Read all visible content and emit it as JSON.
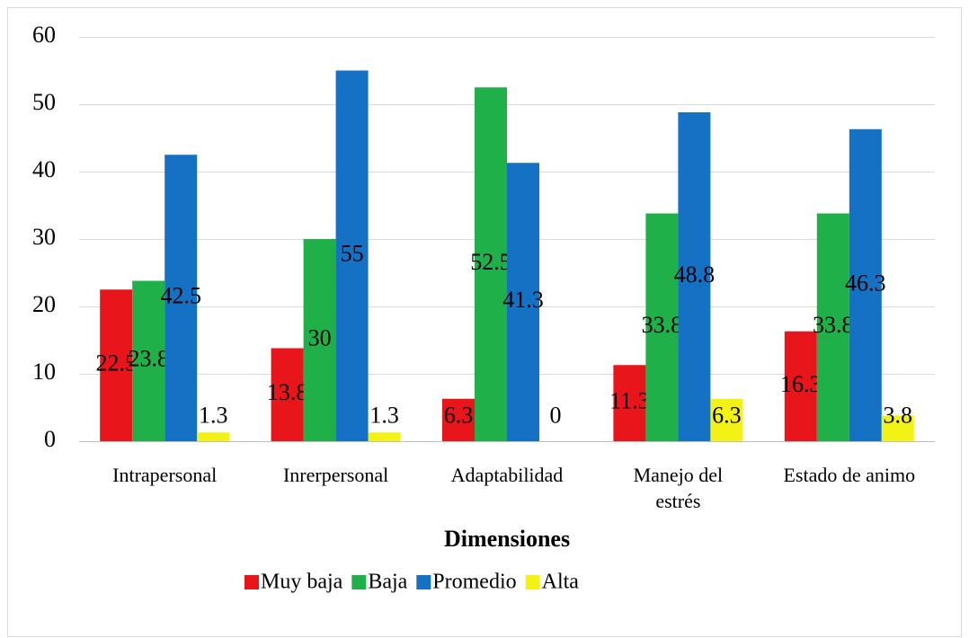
{
  "chart_data": {
    "type": "bar",
    "categories": [
      "Intrapersonal",
      "Inrerpersonal",
      "Adaptabilidad",
      "Manejo del estrés",
      "Estado de animo"
    ],
    "series": [
      {
        "name": "Muy baja",
        "color": "#e8161b",
        "values": [
          22.5,
          13.8,
          6.3,
          11.3,
          16.3
        ]
      },
      {
        "name": "Baja",
        "color": "#1fb04a",
        "values": [
          23.8,
          30,
          52.5,
          33.8,
          33.8
        ]
      },
      {
        "name": "Promedio",
        "color": "#1471c4",
        "values": [
          42.5,
          55,
          41.3,
          48.8,
          46.3
        ]
      },
      {
        "name": "Alta",
        "color": "#f2f214",
        "values": [
          1.3,
          1.3,
          0,
          6.3,
          3.8
        ]
      }
    ],
    "x_label": "Dimensiones",
    "ylim": [
      0,
      60
    ],
    "yticks": [
      0,
      10,
      20,
      30,
      40,
      50,
      60
    ],
    "grid": true,
    "legend": "bottom"
  }
}
